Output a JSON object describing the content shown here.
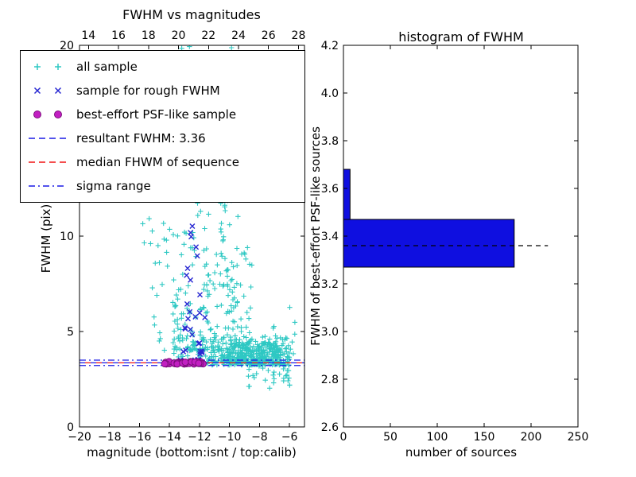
{
  "figure": {
    "background": "#ffffff",
    "axis_color": "#000000"
  },
  "legend": {
    "entries": [
      {
        "label": "all sample",
        "marker": "plus",
        "color": "#2ec8c3"
      },
      {
        "label": "sample for rough FWHM",
        "marker": "x",
        "color": "#2828d2"
      },
      {
        "label": "best-effort PSF-like sample",
        "marker": "circle",
        "color": "#c21fc2",
        "edge": "#7d0d7d"
      },
      {
        "label": "resultant FWHM: 3.36",
        "marker": "dashed-line",
        "color": "#1a1ae6"
      },
      {
        "label": "median FHWM of sequence",
        "marker": "dashed-line",
        "color": "#f01414"
      },
      {
        "label": "sigma range",
        "marker": "dashdot-line",
        "color": "#1a1ae6"
      }
    ]
  },
  "chart_data": [
    {
      "type": "scatter",
      "title": "FWHM vs magnitudes",
      "xlabel": "magnitude (bottom:isnt / top:calib)",
      "ylabel": "FWHM (pix)",
      "x_range": [
        -20,
        -5
      ],
      "y_range": [
        0,
        20
      ],
      "x_ticks_bottom": [
        -20,
        -18,
        -16,
        -14,
        -12,
        -10,
        -8,
        -6
      ],
      "x_ticks_top": [
        14,
        16,
        18,
        20,
        22,
        24,
        26,
        28
      ],
      "top_axis_range": [
        13.4,
        28.4
      ],
      "y_ticks": [
        0,
        5,
        10,
        15,
        20
      ],
      "series": [
        {
          "name": "all sample",
          "marker": "plus",
          "color": "#2ec8c3",
          "seed": 20177,
          "clusters": [
            {
              "count": 230,
              "x": [
                -12.8,
                -6.0
              ],
              "y": [
                3.25,
                4.8
              ],
              "ybias": "sq"
            },
            {
              "count": 200,
              "x": [
                -10.2,
                -6.6
              ],
              "y": [
                3.3,
                4.4
              ],
              "ybias": "uniform"
            },
            {
              "count": 150,
              "x": [
                -13.8,
                -8.5
              ],
              "y": [
                3.4,
                9.5
              ],
              "ybias": "sq"
            },
            {
              "count": 90,
              "x": [
                -14.5,
                -9.2
              ],
              "y": [
                4.0,
                16.0
              ],
              "ybias": "sq"
            },
            {
              "count": 48,
              "x": [
                -15.8,
                -12.4
              ],
              "y": [
                4.5,
                20.0
              ],
              "ybias": "sq"
            },
            {
              "count": 36,
              "x": [
                -10.6,
                -9.6
              ],
              "y": [
                5.0,
                13.5
              ],
              "ybias": "uniform"
            },
            {
              "count": 30,
              "x": [
                -8.8,
                -5.8
              ],
              "y": [
                2.0,
                3.25
              ],
              "ybias": "uniform"
            },
            {
              "count": 26,
              "x": [
                -7.3,
                -5.6
              ],
              "y": [
                3.4,
                6.5
              ],
              "ybias": "sq"
            },
            {
              "count": 8,
              "x": [
                -15.2,
                -9.0
              ],
              "y": [
                17.0,
                20.0
              ],
              "ybias": "uniform"
            }
          ]
        },
        {
          "name": "sample for rough FWHM",
          "marker": "x",
          "color": "#2828d2",
          "seed": 901,
          "clusters": [
            {
              "count": 24,
              "x": [
                -13.3,
                -11.6
              ],
              "y": [
                3.5,
                7.5
              ],
              "ybias": "sq"
            },
            {
              "count": 8,
              "x": [
                -12.9,
                -11.9
              ],
              "y": [
                7.5,
                11.0
              ],
              "ybias": "uniform"
            }
          ]
        },
        {
          "name": "best-effort PSF-like sample",
          "marker": "circle",
          "color": "#c21fc2",
          "edge": "#7d0d7d",
          "seed": 55,
          "clusters": [
            {
              "count": 46,
              "x": [
                -14.35,
                -11.75
              ],
              "y": [
                3.3,
                3.42
              ],
              "ybias": "uniform"
            }
          ]
        }
      ],
      "lines": [
        {
          "name": "resultant FWHM",
          "y": 3.36,
          "color": "#1a1ae6",
          "style": "dashed",
          "phase": 0
        },
        {
          "name": "median FHWM of sequence",
          "y": 3.36,
          "color": "#f01414",
          "style": "dashed",
          "phase": 7
        },
        {
          "name": "sigma range upper",
          "y": 3.5,
          "color": "#1a1ae6",
          "style": "dashdot",
          "phase": 0
        },
        {
          "name": "sigma range lower",
          "y": 3.22,
          "color": "#1a1ae6",
          "style": "dashdot",
          "phase": 0
        }
      ],
      "resultant_fwhm": 3.36
    },
    {
      "type": "barh",
      "title": "histogram of FWHM",
      "xlabel": "number of sources",
      "ylabel": "FWHM of best-effort PSF-like sources",
      "x_range": [
        0,
        250
      ],
      "y_range": [
        2.6,
        4.2
      ],
      "x_ticks": [
        0,
        50,
        100,
        150,
        200,
        250
      ],
      "y_ticks": [
        2.6,
        2.8,
        3.0,
        3.2,
        3.4,
        3.6,
        3.8,
        4.0,
        4.2
      ],
      "bar_color": "#0f0fe0",
      "bars": [
        {
          "y_from": 3.27,
          "y_to": 3.47,
          "value": 182
        },
        {
          "y_from": 3.47,
          "y_to": 3.68,
          "value": 7
        }
      ],
      "median_line": {
        "y": 3.36,
        "x_from": 0,
        "x_to": 218,
        "color": "#000000",
        "style": "dashed"
      }
    }
  ]
}
